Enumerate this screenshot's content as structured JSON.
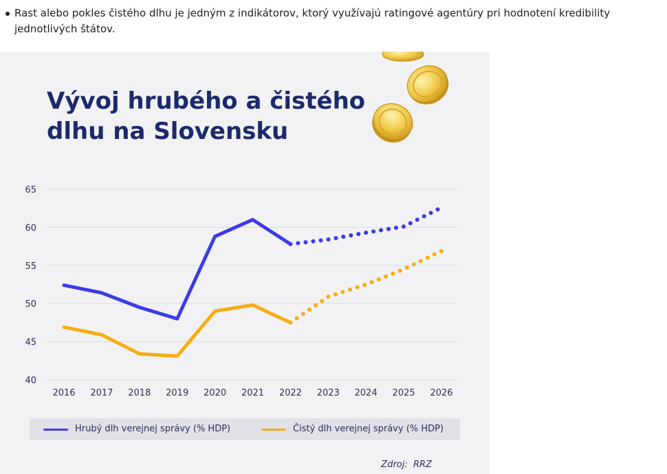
{
  "paragraph": {
    "text": "Rast alebo pokles čistého dlhu je jedným z indikátorov, ktorý využívajú ratingové agentúry pri hodnotení kredibility jednotlivých štátov."
  },
  "source": {
    "label": "Zdroj:",
    "value": "RRZ"
  },
  "colors": {
    "background": "#f2f2f4",
    "title": "#1c2a6b",
    "gross": "#3b3be6",
    "net": "#f7ad14",
    "grid": "#dcdce2",
    "coin": "#f0cb4a"
  },
  "chart_data": {
    "type": "line",
    "title": "Vývoj hrubého a čistého dlhu na Slovensku",
    "xlabel": "",
    "ylabel": "",
    "categories": [
      "2016",
      "2017",
      "2018",
      "2019",
      "2020",
      "2021",
      "2022",
      "2023",
      "2024",
      "2025",
      "2026"
    ],
    "ylim": [
      40,
      65
    ],
    "yticks": [
      40,
      45,
      50,
      55,
      60,
      65
    ],
    "grid": "horizontal",
    "legend_placement": "bottom",
    "solid_until": "2022",
    "series": [
      {
        "name": "Hrubý dlh verejnej správy (% HDP)",
        "color": "#3b3be6",
        "values": [
          52.4,
          51.4,
          49.5,
          48.0,
          58.8,
          61.0,
          57.8,
          58.4,
          59.3,
          60.1,
          62.6
        ]
      },
      {
        "name": "Čistý dlh verejnej správy (% HDP)",
        "color": "#f7ad14",
        "values": [
          46.9,
          45.9,
          43.4,
          43.1,
          49.0,
          49.8,
          47.5,
          50.9,
          52.5,
          54.5,
          56.9
        ]
      }
    ]
  }
}
